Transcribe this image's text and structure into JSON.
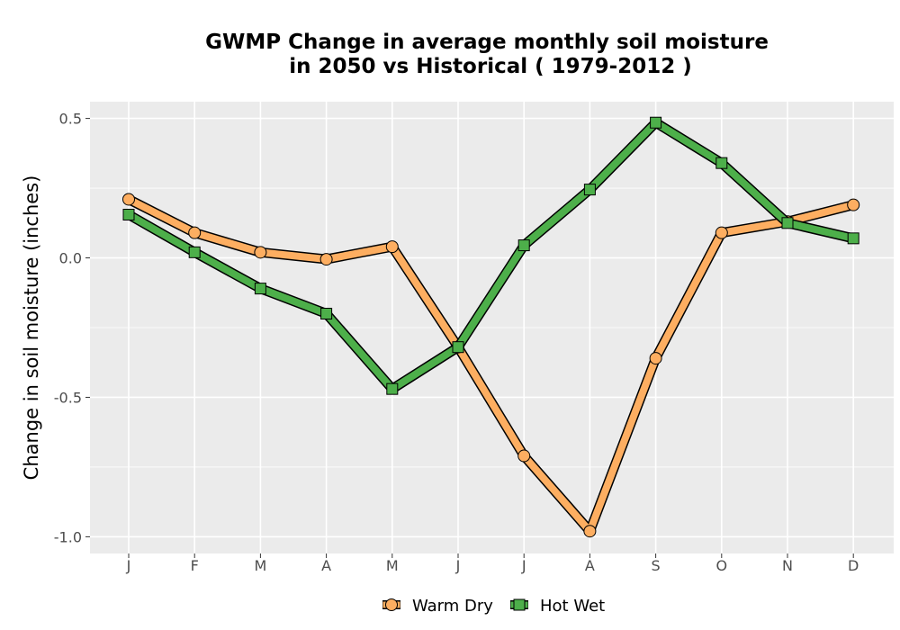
{
  "chart_data": {
    "type": "line",
    "title": "GWMP  Change in average monthly soil moisture",
    "subtitle": "in 2050 vs Historical ( 1979-2012 )",
    "xlabel": "",
    "ylabel": "Change in soil moisture (inches)",
    "categories": [
      "J",
      "F",
      "M",
      "A",
      "M",
      "J",
      "J",
      "A",
      "S",
      "O",
      "N",
      "D"
    ],
    "ylim": [
      -1.06,
      0.56
    ],
    "yticks": [
      0.5,
      0.0,
      -0.5,
      -1.0
    ],
    "ytick_labels": [
      "0.5",
      "0.0",
      "-0.5",
      "-1.0"
    ],
    "grid": true,
    "legend_position": "bottom",
    "series": [
      {
        "name": "Warm Dry",
        "marker": "circle",
        "color": "#FDAE61",
        "values": [
          0.21,
          0.09,
          0.02,
          -0.005,
          0.04,
          -0.32,
          -0.71,
          -0.98,
          -0.36,
          0.09,
          0.13,
          0.19
        ]
      },
      {
        "name": "Hot Wet",
        "marker": "square",
        "color": "#4DAF4A",
        "values": [
          0.155,
          0.02,
          -0.11,
          -0.2,
          -0.47,
          -0.32,
          0.045,
          0.245,
          0.485,
          0.34,
          0.125,
          0.07
        ]
      }
    ]
  }
}
